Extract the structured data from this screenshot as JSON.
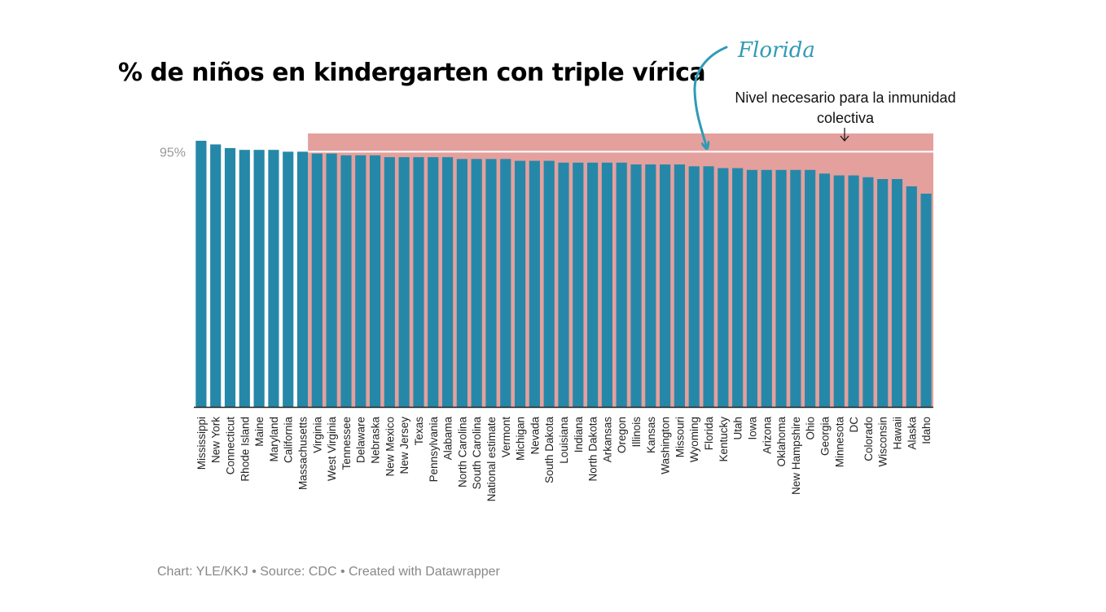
{
  "title": "% de niños en kindergarten con triple vírica",
  "footer": "Chart: YLE/KKJ • Source: CDC • Created with Datawrapper",
  "annotations": {
    "florida_callout": "Florida",
    "threshold_line1": "Nivel necesario para la inmunidad",
    "threshold_line2": "colectiva"
  },
  "colors": {
    "bar": "#2688a8",
    "below_threshold_band": "#e4a09d",
    "callout": "#2f9bb5",
    "axis": "#222222",
    "tick_label": "#999999"
  },
  "chart_data": {
    "type": "bar",
    "title": "% de niños en kindergarten con triple vírica",
    "xlabel": "",
    "ylabel": "",
    "ylim": [
      88,
      95.5
    ],
    "yticks": [
      {
        "value": 95,
        "label": "95%"
      }
    ],
    "threshold": {
      "value": 95,
      "label": "Nivel necesario para la inmunidad colectiva"
    },
    "highlight_category": "Florida",
    "grid": false,
    "categories": [
      "Mississippi",
      "New York",
      "Connecticut",
      "Rhode Island",
      "Maine",
      "Maryland",
      "California",
      "Massachusetts",
      "Virginia",
      "West Virginia",
      "Tennessee",
      "Delaware",
      "Nebraska",
      "New Mexico",
      "New Jersey",
      "Texas",
      "Pennsylvania",
      "Alabama",
      "North Carolina",
      "South Carolina",
      "National estimate",
      "Vermont",
      "Michigan",
      "Nevada",
      "South Dakota",
      "Louisiana",
      "Indiana",
      "North Dakota",
      "Arkansas",
      "Oregon",
      "Illinois",
      "Kansas",
      "Washington",
      "Missouri",
      "Wyoming",
      "Florida",
      "Kentucky",
      "Utah",
      "Iowa",
      "Arizona",
      "Oklahoma",
      "New Hampshire",
      "Ohio",
      "Georgia",
      "Minnesota",
      "DC",
      "Colorado",
      "Wisconsin",
      "Hawaii",
      "Alaska",
      "Idaho"
    ],
    "values": [
      95.3,
      95.2,
      95.1,
      95.05,
      95.05,
      95.05,
      95.0,
      95.0,
      94.95,
      94.95,
      94.9,
      94.9,
      94.9,
      94.85,
      94.85,
      94.85,
      94.85,
      94.85,
      94.8,
      94.8,
      94.8,
      94.8,
      94.75,
      94.75,
      94.75,
      94.7,
      94.7,
      94.7,
      94.7,
      94.7,
      94.65,
      94.65,
      94.65,
      94.65,
      94.6,
      94.6,
      94.55,
      94.55,
      94.5,
      94.5,
      94.5,
      94.5,
      94.5,
      94.4,
      94.35,
      94.35,
      94.3,
      94.25,
      94.25,
      94.05,
      93.85
    ]
  }
}
